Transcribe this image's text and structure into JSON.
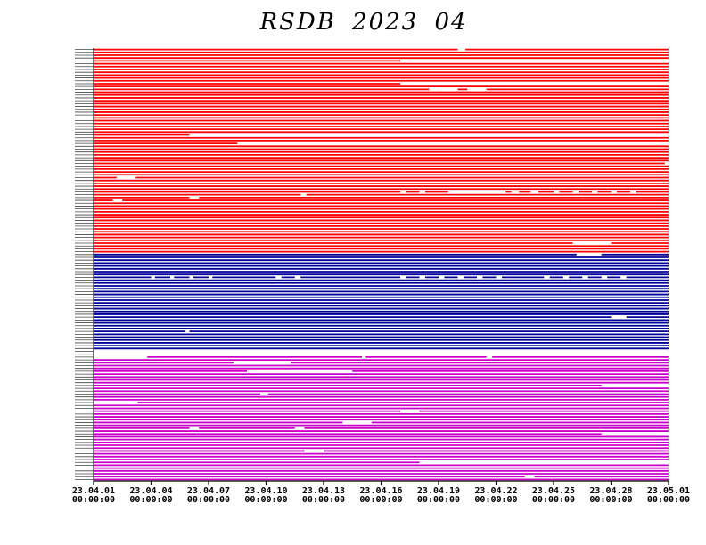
{
  "chart_data": {
    "type": "timeline",
    "title": "RSDB  2023  04",
    "xlabel": "",
    "ylabel": "",
    "xlim": [
      "23.04.01 00:00:00",
      "23.05.01 00:00:00"
    ],
    "x_ticks": [
      {
        "date": "23.04.01",
        "time": "00:00:00"
      },
      {
        "date": "23.04.04",
        "time": "00:00:00"
      },
      {
        "date": "23.04.07",
        "time": "00:00:00"
      },
      {
        "date": "23.04.10",
        "time": "00:00:00"
      },
      {
        "date": "23.04.13",
        "time": "00:00:00"
      },
      {
        "date": "23.04.16",
        "time": "00:00:00"
      },
      {
        "date": "23.04.19",
        "time": "00:00:00"
      },
      {
        "date": "23.04.22",
        "time": "00:00:00"
      },
      {
        "date": "23.04.25",
        "time": "00:00:00"
      },
      {
        "date": "23.04.28",
        "time": "00:00:00"
      },
      {
        "date": "23.05.01",
        "time": "00:00:00"
      }
    ],
    "grid": false,
    "legend": "none",
    "groups": [
      {
        "color": "#ff0000",
        "row_count": 72,
        "gaps": [
          {
            "row": 0,
            "start": 19.0,
            "end": 19.4
          },
          {
            "row": 4,
            "start": 16.0,
            "end": 30.0
          },
          {
            "row": 12,
            "start": 16.0,
            "end": 30.0
          },
          {
            "row": 14,
            "start": 17.5,
            "end": 19.0
          },
          {
            "row": 14,
            "start": 19.5,
            "end": 20.5
          },
          {
            "row": 30,
            "start": 5.0,
            "end": 30.0
          },
          {
            "row": 33,
            "start": 7.5,
            "end": 30.0
          },
          {
            "row": 40,
            "start": 29.8,
            "end": 30.0
          },
          {
            "row": 45,
            "start": 1.2,
            "end": 2.2
          },
          {
            "row": 50,
            "start": 18.5,
            "end": 21.5
          },
          {
            "row": 50,
            "start": 16.0,
            "end": 16.3
          },
          {
            "row": 50,
            "start": 17.0,
            "end": 17.3
          },
          {
            "row": 50,
            "start": 21.8,
            "end": 22.2
          },
          {
            "row": 50,
            "start": 22.8,
            "end": 23.2
          },
          {
            "row": 50,
            "start": 24.0,
            "end": 24.3
          },
          {
            "row": 50,
            "start": 25.0,
            "end": 25.3
          },
          {
            "row": 50,
            "start": 26.0,
            "end": 26.3
          },
          {
            "row": 50,
            "start": 27.0,
            "end": 27.3
          },
          {
            "row": 50,
            "start": 28.0,
            "end": 28.3
          },
          {
            "row": 51,
            "start": 10.8,
            "end": 11.1
          },
          {
            "row": 52,
            "start": 5.0,
            "end": 5.5
          },
          {
            "row": 53,
            "start": 1.0,
            "end": 1.5
          },
          {
            "row": 68,
            "start": 25.0,
            "end": 27.0
          }
        ]
      },
      {
        "color": "#000099",
        "row_count": 36,
        "gaps": [
          {
            "row": 0,
            "start": 25.2,
            "end": 26.5
          },
          {
            "row": 8,
            "start": 3.0,
            "end": 3.2
          },
          {
            "row": 8,
            "start": 4.0,
            "end": 4.2
          },
          {
            "row": 8,
            "start": 5.0,
            "end": 5.2
          },
          {
            "row": 8,
            "start": 6.0,
            "end": 6.2
          },
          {
            "row": 8,
            "start": 9.5,
            "end": 9.8
          },
          {
            "row": 8,
            "start": 10.5,
            "end": 10.8
          },
          {
            "row": 8,
            "start": 16.0,
            "end": 16.3
          },
          {
            "row": 8,
            "start": 17.0,
            "end": 17.3
          },
          {
            "row": 8,
            "start": 18.0,
            "end": 18.3
          },
          {
            "row": 8,
            "start": 19.0,
            "end": 19.3
          },
          {
            "row": 8,
            "start": 20.0,
            "end": 20.3
          },
          {
            "row": 8,
            "start": 21.0,
            "end": 21.3
          },
          {
            "row": 8,
            "start": 23.5,
            "end": 23.8
          },
          {
            "row": 8,
            "start": 24.5,
            "end": 24.8
          },
          {
            "row": 8,
            "start": 25.5,
            "end": 25.8
          },
          {
            "row": 8,
            "start": 26.5,
            "end": 26.8
          },
          {
            "row": 8,
            "start": 27.5,
            "end": 27.8
          },
          {
            "row": 22,
            "start": 27.0,
            "end": 27.8
          },
          {
            "row": 27,
            "start": 4.8,
            "end": 5.0
          },
          {
            "row": 34,
            "start": 0.0,
            "end": 30.0
          },
          {
            "row": 35,
            "start": 0.0,
            "end": 30.0
          }
        ]
      },
      {
        "color": "#cc00cc",
        "row_count": 44,
        "gaps": [
          {
            "row": 0,
            "start": 0.0,
            "end": 2.8
          },
          {
            "row": 0,
            "start": 14.0,
            "end": 14.2
          },
          {
            "row": 0,
            "start": 20.5,
            "end": 20.8
          },
          {
            "row": 2,
            "start": 7.3,
            "end": 10.3
          },
          {
            "row": 5,
            "start": 8.0,
            "end": 13.5
          },
          {
            "row": 10,
            "start": 26.5,
            "end": 30.0
          },
          {
            "row": 13,
            "start": 8.7,
            "end": 9.1
          },
          {
            "row": 16,
            "start": 0.0,
            "end": 2.3
          },
          {
            "row": 19,
            "start": 16.0,
            "end": 17.0
          },
          {
            "row": 23,
            "start": 13.0,
            "end": 14.5
          },
          {
            "row": 25,
            "start": 5.0,
            "end": 5.5
          },
          {
            "row": 25,
            "start": 10.5,
            "end": 11.0
          },
          {
            "row": 27,
            "start": 26.5,
            "end": 30.0
          },
          {
            "row": 33,
            "start": 11.0,
            "end": 12.0
          },
          {
            "row": 37,
            "start": 17.0,
            "end": 30.0
          },
          {
            "row": 42,
            "start": 22.5,
            "end": 23.0
          }
        ]
      }
    ]
  }
}
